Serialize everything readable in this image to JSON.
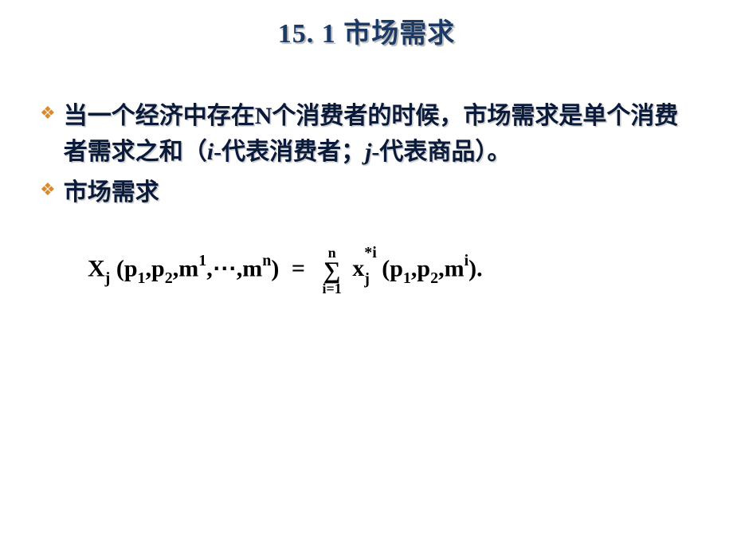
{
  "title": "15. 1   市场需求",
  "bullets": [
    {
      "pre": "当一个经济中存在N个消费者的时候，市场需求是单个消费者需求之和（",
      "i_var": "i",
      "mid1": "-代表消费者；",
      "j_var": "j",
      "post": "-代表商品）。"
    },
    {
      "text": "市场需求"
    }
  ],
  "formula": {
    "X": "X",
    "j1": "j",
    "p": "p",
    "one": "1",
    "two": "2",
    "m": "m",
    "n": "n",
    "dots": ",⋯,",
    "eq": "=",
    "sum_top": "n",
    "sum_sym": "∑",
    "sum_bot": "i=1",
    "x": "x",
    "star_i": "*i",
    "i": "i",
    "dot": "."
  },
  "colors": {
    "title": "#1c3a66",
    "text": "#0a1a3a",
    "bullet": "#d98b2e",
    "shadow": "#c8c8c8",
    "formula": "#000000",
    "bg": "#ffffff"
  }
}
